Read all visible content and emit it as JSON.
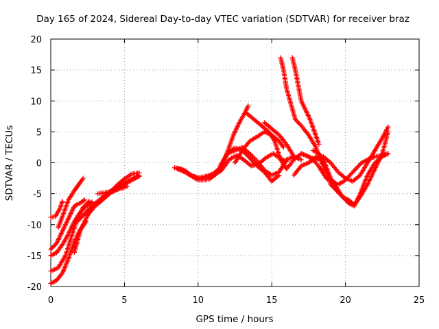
{
  "chart_data": {
    "type": "scatter",
    "title": "Day 165 of 2024, Sidereal Day-to-day VTEC variation (SDTVAR) for receiver braz",
    "xlabel": "GPS time / hours",
    "ylabel": "SDTVAR / TECUs",
    "xlim": [
      0,
      25
    ],
    "ylim": [
      -20,
      20
    ],
    "xticks": [
      0,
      5,
      10,
      15,
      20,
      25
    ],
    "yticks": [
      -20,
      -15,
      -10,
      -5,
      0,
      5,
      10,
      15,
      20
    ],
    "grid": true,
    "marker": "+",
    "color": "#ff0000",
    "series": [
      {
        "x": [
          0.0,
          0.4,
          0.8,
          1.2,
          1.6,
          2.0,
          2.4
        ],
        "y": [
          -19.5,
          -19.0,
          -17.8,
          -15.5,
          -12.8,
          -10.8,
          -9.5
        ]
      },
      {
        "x": [
          0.0,
          0.5,
          1.0,
          1.4,
          1.8,
          2.2,
          2.6
        ],
        "y": [
          -17.5,
          -17.0,
          -15.0,
          -12.0,
          -9.0,
          -7.2,
          -6.2
        ]
      },
      {
        "x": [
          0.0,
          0.4,
          0.8,
          1.2,
          1.6,
          2.0,
          2.4,
          2.8
        ],
        "y": [
          -15.0,
          -14.5,
          -13.2,
          -11.5,
          -9.5,
          -8.0,
          -7.0,
          -6.3
        ]
      },
      {
        "x": [
          0.0,
          0.4,
          0.8,
          1.2,
          1.6,
          2.0,
          2.3
        ],
        "y": [
          -14.0,
          -13.0,
          -11.0,
          -9.0,
          -7.0,
          -6.5,
          -6.0
        ]
      },
      {
        "x": [
          0.0,
          0.3,
          0.6,
          0.8
        ],
        "y": [
          -8.8,
          -8.7,
          -7.5,
          -6.2
        ]
      },
      {
        "x": [
          0.5,
          0.9,
          1.2,
          1.6,
          1.9,
          2.2
        ],
        "y": [
          -10.5,
          -8.0,
          -6.0,
          -4.5,
          -3.5,
          -2.5
        ]
      },
      {
        "x": [
          1.6,
          2.0,
          2.5,
          3.0,
          3.5,
          4.0,
          4.5,
          5.0,
          5.5,
          6.0
        ],
        "y": [
          -14.5,
          -11.0,
          -8.5,
          -7.0,
          -6.0,
          -5.0,
          -4.2,
          -3.5,
          -2.8,
          -2.2
        ]
      },
      {
        "x": [
          1.8,
          2.2,
          2.7,
          3.2,
          3.7,
          4.2,
          4.7,
          5.2,
          5.7,
          6.0
        ],
        "y": [
          -9.5,
          -8.5,
          -7.2,
          -6.2,
          -5.2,
          -4.4,
          -3.6,
          -3.0,
          -2.4,
          -2.0
        ]
      },
      {
        "x": [
          2.5,
          3.0,
          3.5,
          4.0,
          4.5,
          5.0,
          5.5,
          6.0
        ],
        "y": [
          -8.0,
          -7.0,
          -6.0,
          -4.8,
          -3.6,
          -2.6,
          -1.8,
          -1.6
        ]
      },
      {
        "x": [
          3.2,
          3.7,
          4.2,
          4.7,
          5.2
        ],
        "y": [
          -5.0,
          -4.8,
          -4.6,
          -4.2,
          -3.8
        ]
      },
      {
        "x": [
          8.4,
          8.8,
          9.2,
          9.6,
          10.0,
          10.4,
          10.8,
          11.2,
          11.6,
          12.0,
          12.4,
          12.8,
          13.2,
          13.4
        ],
        "y": [
          -0.8,
          -1.0,
          -1.4,
          -2.2,
          -2.8,
          -2.8,
          -2.6,
          -1.8,
          -0.5,
          1.8,
          4.5,
          6.5,
          8.2,
          9.2
        ]
      },
      {
        "x": [
          8.5,
          9.0,
          9.5,
          10.0,
          10.5,
          11.0,
          11.5,
          12.0,
          12.5,
          13.0,
          13.5,
          14.0,
          14.5,
          15.0,
          15.5
        ],
        "y": [
          -0.8,
          -1.2,
          -2.0,
          -2.4,
          -2.2,
          -1.8,
          -0.8,
          1.6,
          2.4,
          2.0,
          0.8,
          -0.5,
          -1.5,
          -3.0,
          -2.0
        ]
      },
      {
        "x": [
          8.6,
          9.1,
          9.6,
          10.1,
          10.6,
          11.1,
          11.6,
          12.1,
          12.6,
          13.1,
          13.6,
          14.1,
          14.6,
          15.1,
          15.5,
          16.0
        ],
        "y": [
          -1.0,
          -1.5,
          -2.2,
          -2.6,
          -2.4,
          -2.0,
          -1.2,
          0.5,
          1.2,
          0.5,
          -0.5,
          -0.2,
          0.8,
          1.5,
          0.8,
          0.2
        ]
      },
      {
        "x": [
          11.5,
          12.0,
          12.5,
          13.0,
          13.5,
          14.0,
          14.5,
          15.0,
          15.5,
          16.0,
          16.5,
          17.0
        ],
        "y": [
          -0.5,
          1.5,
          2.0,
          2.5,
          1.5,
          0.3,
          -1.2,
          -2.0,
          -1.5,
          0.5,
          1.0,
          0.5
        ]
      },
      {
        "x": [
          13.3,
          13.8,
          14.3,
          14.8,
          15.2,
          15.6,
          16.0,
          16.5,
          17.0,
          17.5,
          18.0,
          18.5
        ],
        "y": [
          8.0,
          7.0,
          6.0,
          5.0,
          3.5,
          0.5,
          -1.0,
          0.5,
          1.5,
          1.0,
          0.0,
          -1.5
        ]
      },
      {
        "x": [
          12.5,
          13.0,
          13.5,
          14.0,
          14.5,
          15.0,
          15.5,
          15.8
        ],
        "y": [
          0.0,
          2.0,
          3.5,
          4.2,
          5.0,
          4.5,
          3.5,
          2.5
        ]
      },
      {
        "x": [
          14.5,
          15.0,
          15.5,
          16.0,
          16.5
        ],
        "y": [
          6.5,
          5.5,
          4.5,
          3.0,
          1.0
        ]
      },
      {
        "x": [
          15.6,
          15.8,
          16.0,
          16.3,
          16.6,
          17.0,
          17.5,
          18.0,
          18.3
        ],
        "y": [
          17.0,
          15.0,
          12.0,
          9.5,
          7.0,
          6.0,
          4.5,
          2.5,
          0.5
        ]
      },
      {
        "x": [
          16.4,
          16.6,
          16.8,
          17.0,
          17.3,
          17.6,
          17.9,
          18.2
        ],
        "y": [
          17.0,
          15.0,
          12.5,
          10.0,
          8.5,
          7.0,
          5.0,
          3.0
        ]
      },
      {
        "x": [
          16.5,
          17.0,
          17.5,
          17.8,
          18.0,
          18.3,
          18.7,
          19.0,
          19.4,
          19.8,
          20.2,
          20.6,
          21.0,
          21.5,
          22.0,
          22.5,
          22.9
        ],
        "y": [
          -2.0,
          -0.5,
          0.0,
          0.5,
          1.0,
          0.5,
          -1.5,
          -3.5,
          -4.5,
          -5.5,
          -6.0,
          -6.8,
          -5.5,
          -3.5,
          -1.0,
          1.5,
          5.0
        ]
      },
      {
        "x": [
          17.0,
          17.5,
          18.0,
          18.5,
          19.0,
          19.5,
          20.0,
          20.5,
          21.0,
          21.5,
          22.0,
          22.5,
          22.9
        ],
        "y": [
          1.5,
          1.0,
          0.5,
          1.0,
          0.0,
          -1.5,
          -2.5,
          -3.0,
          -2.0,
          0.0,
          2.0,
          4.0,
          5.8
        ]
      },
      {
        "x": [
          17.8,
          18.2,
          18.6,
          19.0,
          19.4,
          19.8,
          20.2,
          20.6,
          21.0,
          21.5,
          22.0,
          22.5,
          22.9
        ],
        "y": [
          2.0,
          1.5,
          0.0,
          -2.5,
          -4.0,
          -5.5,
          -6.5,
          -7.0,
          -5.0,
          -2.0,
          0.0,
          1.0,
          1.5
        ]
      },
      {
        "x": [
          18.3,
          18.7,
          19.1,
          19.5,
          19.9,
          20.3,
          20.7,
          21.1,
          21.5,
          22.0,
          22.5,
          22.9
        ],
        "y": [
          -1.0,
          -2.5,
          -3.0,
          -3.5,
          -3.0,
          -2.0,
          -1.0,
          0.0,
          0.5,
          1.0,
          1.2,
          1.5
        ]
      }
    ]
  }
}
